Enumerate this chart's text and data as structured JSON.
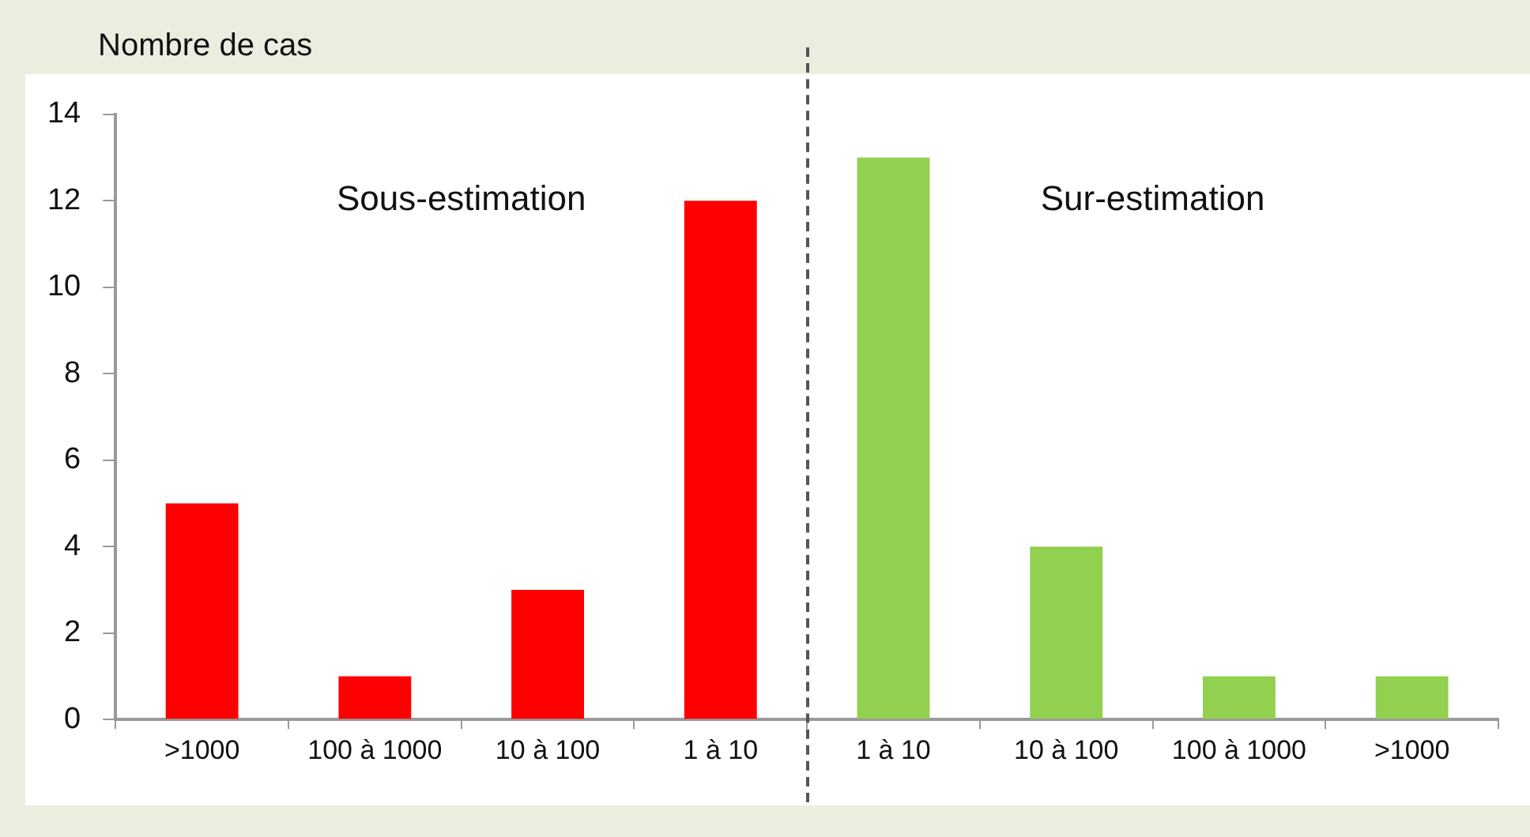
{
  "chart_data": {
    "type": "bar",
    "ylabel": "Nombre de cas",
    "categories": [
      ">1000",
      "100 à 1000",
      "10 à 100",
      "1 à 10",
      "1 à 10",
      "10 à 100",
      "100 à 1000",
      ">1000"
    ],
    "values": [
      5,
      1,
      3,
      12,
      13,
      4,
      1,
      1
    ],
    "colors": [
      "#ff0000",
      "#ff0000",
      "#ff0000",
      "#ff0000",
      "#92d050",
      "#92d050",
      "#92d050",
      "#92d050"
    ],
    "ylim": [
      0,
      14
    ],
    "yticks": [
      0,
      2,
      4,
      6,
      8,
      10,
      12,
      14
    ],
    "grid": false,
    "legend": false,
    "annotations": [
      "Sous-estimation",
      "Sur-estimation"
    ]
  }
}
